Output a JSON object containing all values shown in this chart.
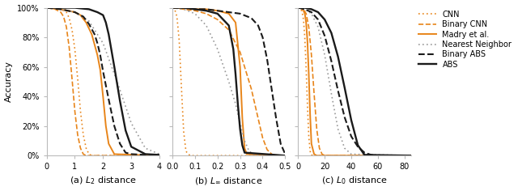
{
  "fig_width": 6.4,
  "fig_height": 2.36,
  "dpi": 100,
  "orange": "#E8851A",
  "black": "#1a1a1a",
  "gray": "#999999",
  "L2": {
    "xlabel": "(a) $L_2$ distance",
    "xlim": [
      0,
      4
    ],
    "xticks": [
      0,
      1,
      2,
      3,
      4
    ],
    "CNN": {
      "x": [
        0.0,
        0.5,
        0.7,
        0.8,
        0.9,
        1.0,
        1.1,
        1.2,
        1.3,
        1.4,
        1.5,
        1.6,
        4.0
      ],
      "y": [
        1.0,
        0.99,
        0.97,
        0.93,
        0.85,
        0.72,
        0.52,
        0.3,
        0.14,
        0.05,
        0.01,
        0.0,
        0.0
      ]
    },
    "BinCNN": {
      "x": [
        0.0,
        0.3,
        0.5,
        0.6,
        0.7,
        0.8,
        0.9,
        1.0,
        1.1,
        1.2,
        1.3,
        1.4,
        4.0
      ],
      "y": [
        1.0,
        0.99,
        0.97,
        0.94,
        0.87,
        0.73,
        0.52,
        0.3,
        0.14,
        0.05,
        0.01,
        0.0,
        0.0
      ]
    },
    "Madry": {
      "x": [
        0.0,
        0.5,
        1.0,
        1.2,
        1.4,
        1.6,
        1.8,
        1.9,
        2.0,
        2.1,
        2.2,
        2.4,
        4.0
      ],
      "y": [
        1.0,
        0.99,
        0.97,
        0.95,
        0.9,
        0.82,
        0.68,
        0.58,
        0.4,
        0.2,
        0.08,
        0.01,
        0.0
      ]
    },
    "NN": {
      "x": [
        0.0,
        0.5,
        1.0,
        1.5,
        2.0,
        2.5,
        3.0,
        3.5,
        4.0
      ],
      "y": [
        1.0,
        0.99,
        0.97,
        0.91,
        0.76,
        0.5,
        0.22,
        0.05,
        0.01
      ]
    },
    "BinABS": {
      "x": [
        0.0,
        0.5,
        1.0,
        1.3,
        1.5,
        1.7,
        1.8,
        1.9,
        2.0,
        2.2,
        2.4,
        2.6,
        2.8,
        3.0,
        4.0
      ],
      "y": [
        1.0,
        0.99,
        0.97,
        0.94,
        0.89,
        0.82,
        0.76,
        0.68,
        0.57,
        0.38,
        0.2,
        0.08,
        0.02,
        0.01,
        0.0
      ]
    },
    "ABS": {
      "x": [
        0.0,
        0.5,
        1.0,
        1.5,
        1.8,
        2.0,
        2.1,
        2.2,
        2.4,
        2.6,
        2.8,
        3.0,
        3.5,
        4.0
      ],
      "y": [
        1.0,
        1.0,
        1.0,
        0.99,
        0.97,
        0.95,
        0.9,
        0.82,
        0.6,
        0.37,
        0.17,
        0.06,
        0.01,
        0.005
      ]
    }
  },
  "Linf": {
    "xlabel": "(b) $L_\\infty$ distance",
    "xlim": [
      0.0,
      0.5
    ],
    "xticks": [
      0.0,
      0.1,
      0.2,
      0.3,
      0.4,
      0.5
    ],
    "CNN": {
      "x": [
        0.0,
        0.01,
        0.02,
        0.03,
        0.04,
        0.05,
        0.06,
        0.07,
        0.08,
        0.5
      ],
      "y": [
        1.0,
        0.99,
        0.94,
        0.78,
        0.46,
        0.16,
        0.03,
        0.01,
        0.0,
        0.0
      ]
    },
    "BinCNN": {
      "x": [
        0.0,
        0.05,
        0.1,
        0.15,
        0.2,
        0.25,
        0.3,
        0.35,
        0.4,
        0.42,
        0.44,
        0.46,
        0.5
      ],
      "y": [
        1.0,
        0.99,
        0.98,
        0.96,
        0.92,
        0.85,
        0.7,
        0.45,
        0.12,
        0.04,
        0.01,
        0.0,
        0.0
      ]
    },
    "Madry": {
      "x": [
        0.0,
        0.05,
        0.1,
        0.15,
        0.2,
        0.25,
        0.28,
        0.3,
        0.31,
        0.32,
        0.33,
        0.5
      ],
      "y": [
        1.0,
        1.0,
        0.99,
        0.99,
        0.98,
        0.96,
        0.9,
        0.6,
        0.25,
        0.05,
        0.01,
        0.0
      ]
    },
    "NN": {
      "x": [
        0.0,
        0.05,
        0.1,
        0.15,
        0.2,
        0.25,
        0.28,
        0.3,
        0.32,
        0.34,
        0.36,
        0.38,
        0.4,
        0.5
      ],
      "y": [
        1.0,
        0.99,
        0.96,
        0.88,
        0.72,
        0.5,
        0.35,
        0.22,
        0.1,
        0.03,
        0.01,
        0.0,
        0.0,
        0.0
      ]
    },
    "BinABS": {
      "x": [
        0.0,
        0.05,
        0.1,
        0.15,
        0.2,
        0.25,
        0.3,
        0.35,
        0.38,
        0.4,
        0.42,
        0.44,
        0.46,
        0.48,
        0.5
      ],
      "y": [
        1.0,
        1.0,
        0.99,
        0.99,
        0.98,
        0.97,
        0.96,
        0.93,
        0.88,
        0.8,
        0.65,
        0.45,
        0.25,
        0.08,
        0.01
      ]
    },
    "ABS": {
      "x": [
        0.0,
        0.05,
        0.1,
        0.15,
        0.2,
        0.25,
        0.27,
        0.28,
        0.29,
        0.3,
        0.31,
        0.32,
        0.5
      ],
      "y": [
        1.0,
        1.0,
        0.99,
        0.98,
        0.96,
        0.88,
        0.72,
        0.55,
        0.35,
        0.18,
        0.07,
        0.02,
        0.0
      ]
    }
  },
  "L0": {
    "xlabel": "(c) $L_0$ distance",
    "xlim": [
      0,
      85
    ],
    "xticks": [
      0,
      20,
      40,
      60,
      80
    ],
    "CNN": {
      "x": [
        0,
        1,
        2,
        3,
        4,
        5,
        6,
        7,
        8,
        9,
        10,
        12,
        85
      ],
      "y": [
        1.0,
        1.0,
        0.99,
        0.97,
        0.92,
        0.8,
        0.59,
        0.34,
        0.13,
        0.03,
        0.005,
        0.0,
        0.0
      ]
    },
    "BinCNN": {
      "x": [
        0,
        2,
        4,
        6,
        8,
        10,
        12,
        14,
        16,
        18,
        20,
        85
      ],
      "y": [
        1.0,
        1.0,
        0.99,
        0.96,
        0.87,
        0.68,
        0.42,
        0.18,
        0.05,
        0.01,
        0.0,
        0.0
      ]
    },
    "Madry": {
      "x": [
        0,
        1,
        2,
        3,
        4,
        5,
        6,
        7,
        8,
        9,
        10,
        12,
        14,
        85
      ],
      "y": [
        1.0,
        1.0,
        1.0,
        0.99,
        0.98,
        0.96,
        0.9,
        0.77,
        0.55,
        0.28,
        0.08,
        0.01,
        0.0,
        0.0
      ]
    },
    "NN": {
      "x": [
        0,
        5,
        10,
        15,
        20,
        25,
        30,
        35,
        40,
        85
      ],
      "y": [
        1.0,
        0.99,
        0.96,
        0.87,
        0.68,
        0.42,
        0.18,
        0.05,
        0.01,
        0.0
      ]
    },
    "BinABS": {
      "x": [
        0,
        5,
        10,
        15,
        20,
        25,
        30,
        35,
        40,
        45,
        50,
        55,
        60,
        65,
        70,
        75,
        80,
        85
      ],
      "y": [
        1.0,
        0.99,
        0.97,
        0.92,
        0.81,
        0.64,
        0.44,
        0.26,
        0.13,
        0.06,
        0.02,
        0.005,
        0.0,
        0.0,
        0.0,
        0.0,
        0.0,
        0.0
      ]
    },
    "ABS": {
      "x": [
        0,
        5,
        10,
        15,
        20,
        25,
        30,
        35,
        40,
        45,
        50,
        85
      ],
      "y": [
        1.0,
        1.0,
        0.99,
        0.97,
        0.92,
        0.83,
        0.67,
        0.46,
        0.24,
        0.07,
        0.005,
        0.0
      ]
    }
  }
}
